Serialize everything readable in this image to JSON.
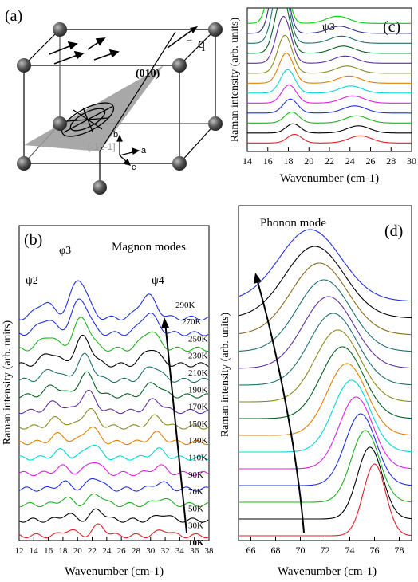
{
  "panels": {
    "a": {
      "tag": "(a)",
      "plane_label": "(010)",
      "direction_label": "[-12-1]",
      "vector_label": "q",
      "axes": [
        "a",
        "b",
        "c"
      ]
    },
    "b": {
      "tag": "(b)",
      "title": "Magnon modes",
      "mode_labels": [
        "ψ2",
        "φ3",
        "ψ4"
      ]
    },
    "c": {
      "tag": "(c)",
      "mode_labels": [
        "ψ3"
      ]
    },
    "d": {
      "tag": "(d)",
      "title": "Phonon mode"
    }
  },
  "colors": [
    "#e0202a",
    "#000000",
    "#20b020",
    "#2030e0",
    "#e020e0",
    "#00d8d8",
    "#e08000",
    "#8a8a20",
    "#6030a0",
    "#006020",
    "#207070",
    "#303090",
    "#00d000"
  ],
  "chart_data": [
    {
      "panel": "b",
      "type": "line",
      "xlabel": "Wavenumber (cm-1)",
      "ylabel": "Raman intensity (arb. units)",
      "xlim": [
        12,
        38
      ],
      "xticks": [
        12,
        14,
        16,
        18,
        20,
        22,
        24,
        26,
        28,
        30,
        32,
        34,
        36,
        38
      ],
      "temperatures": [
        "10K",
        "30K",
        "50K",
        "70K",
        "90K",
        "110K",
        "130K",
        "150K",
        "170K",
        "190K",
        "210K",
        "230K",
        "250K",
        "270K",
        "290K"
      ],
      "peaks": [
        {
          "name": "ψ2",
          "center_10K": 18.8,
          "center_290K": 15.5,
          "height_10K": 0.35,
          "height_290K": 0.9
        },
        {
          "name": "φ3",
          "center_10K": 23.0,
          "center_290K": 20.2,
          "height_10K": 0.6,
          "height_290K": 2.2
        },
        {
          "name": "ψ4",
          "center_10K": 31.8,
          "center_290K": 29.6,
          "height_10K": 0.35,
          "height_290K": 1.3
        }
      ]
    },
    {
      "panel": "c",
      "type": "line",
      "xlabel": "Wavenumber (cm-1)",
      "ylabel": "Raman intensity (arb. units)",
      "xlim": [
        14,
        30
      ],
      "xticks": [
        14,
        16,
        18,
        20,
        22,
        24,
        26,
        28,
        30
      ],
      "curves": 13,
      "peaks": [
        {
          "name": "ψ2",
          "center_low": 18.6,
          "center_high": 17.0
        },
        {
          "name": "ψ3",
          "center_low": 25.0,
          "center_high": 22.8
        }
      ]
    },
    {
      "panel": "d",
      "type": "line",
      "xlabel": "Wavenumber (cm-1)",
      "ylabel": "Raman intensity (arb. units)",
      "xlim": [
        65,
        79
      ],
      "xticks": [
        66,
        68,
        70,
        72,
        74,
        76,
        78
      ],
      "curves": 15,
      "peak_center_low_T": 76.0,
      "peak_center_high_T": 70.8
    }
  ]
}
